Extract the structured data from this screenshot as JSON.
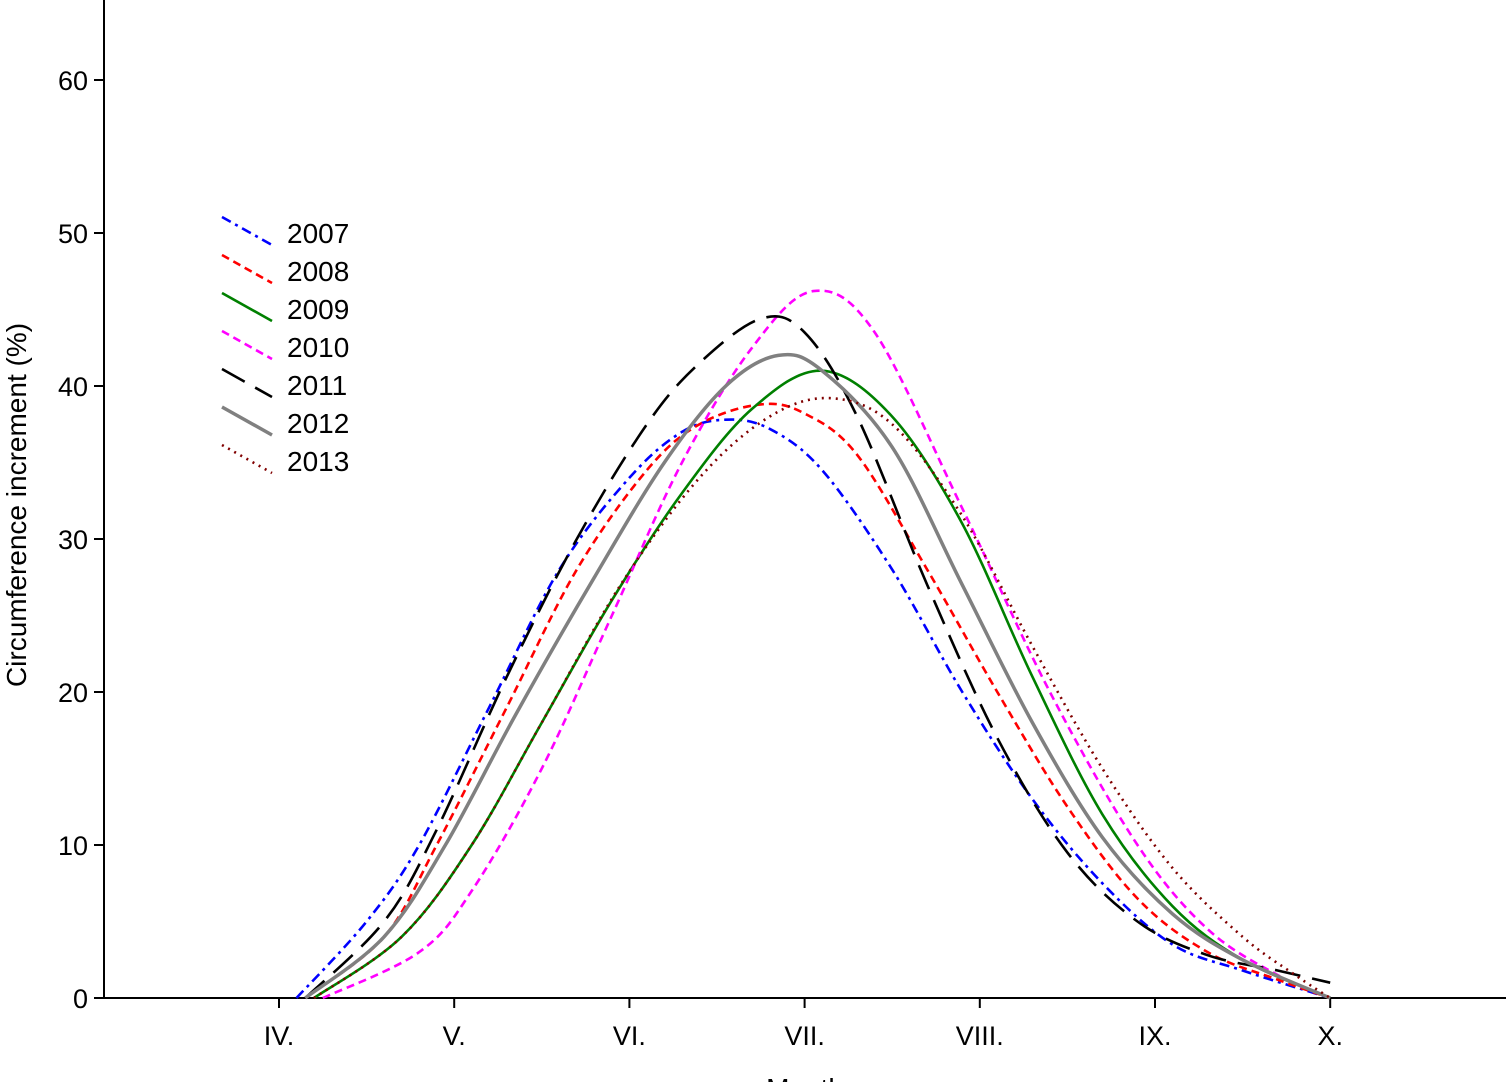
{
  "chart_data": {
    "type": "line",
    "title": "",
    "xlabel": "Month",
    "ylabel": "Circumference increment (%)",
    "x_ticks": [
      "IV.",
      "V.",
      "VI.",
      "VII.",
      "VIII.",
      "IX.",
      "X."
    ],
    "xlim": [
      3.0,
      11.0
    ],
    "ylim": [
      0,
      65
    ],
    "y_ticks": [
      0,
      10,
      20,
      30,
      40,
      50,
      60
    ],
    "grid": false,
    "legend_position": "upper-left",
    "series": [
      {
        "name": "2007",
        "color": "#0000ff",
        "dash": "dash-dot",
        "points": [
          [
            4.1,
            0
          ],
          [
            4.5,
            5
          ],
          [
            4.8,
            10
          ],
          [
            5.2,
            19
          ],
          [
            5.6,
            28
          ],
          [
            6.0,
            34
          ],
          [
            6.3,
            37
          ],
          [
            6.55,
            37.8
          ],
          [
            6.8,
            37.2
          ],
          [
            7.1,
            34.5
          ],
          [
            7.5,
            28
          ],
          [
            7.9,
            20
          ],
          [
            8.3,
            13
          ],
          [
            8.7,
            7.5
          ],
          [
            9.1,
            3.5
          ],
          [
            9.5,
            1.8
          ],
          [
            10.0,
            0
          ]
        ]
      },
      {
        "name": "2008",
        "color": "#ff0000",
        "dash": "short-dash",
        "points": [
          [
            4.15,
            0
          ],
          [
            4.6,
            4
          ],
          [
            4.9,
            10
          ],
          [
            5.3,
            19
          ],
          [
            5.7,
            28
          ],
          [
            6.1,
            34.5
          ],
          [
            6.4,
            37.5
          ],
          [
            6.75,
            38.8
          ],
          [
            7.0,
            38.2
          ],
          [
            7.3,
            35.5
          ],
          [
            7.7,
            28
          ],
          [
            8.1,
            20
          ],
          [
            8.5,
            12.5
          ],
          [
            8.9,
            6.5
          ],
          [
            9.3,
            3
          ],
          [
            9.7,
            1.2
          ],
          [
            10.0,
            0
          ]
        ]
      },
      {
        "name": "2009",
        "color": "#008000",
        "dash": "solid",
        "points": [
          [
            4.2,
            0
          ],
          [
            4.7,
            4
          ],
          [
            5.1,
            10
          ],
          [
            5.5,
            18
          ],
          [
            5.9,
            26
          ],
          [
            6.3,
            33
          ],
          [
            6.7,
            38.5
          ],
          [
            7.1,
            41
          ],
          [
            7.5,
            38
          ],
          [
            7.9,
            31
          ],
          [
            8.3,
            21
          ],
          [
            8.7,
            12
          ],
          [
            9.1,
            6
          ],
          [
            9.5,
            2.5
          ],
          [
            10.0,
            0
          ]
        ]
      },
      {
        "name": "2010",
        "color": "#ff00ff",
        "dash": "short-dash",
        "points": [
          [
            4.25,
            0
          ],
          [
            4.8,
            3
          ],
          [
            5.1,
            7
          ],
          [
            5.5,
            15
          ],
          [
            5.9,
            25
          ],
          [
            6.3,
            35
          ],
          [
            6.7,
            42.5
          ],
          [
            7.05,
            46.2
          ],
          [
            7.4,
            43.5
          ],
          [
            7.9,
            32
          ],
          [
            8.4,
            20
          ],
          [
            8.9,
            10
          ],
          [
            9.3,
            4.5
          ],
          [
            9.7,
            1.5
          ],
          [
            10.0,
            0
          ]
        ]
      },
      {
        "name": "2011",
        "color": "#000000",
        "dash": "long-dash",
        "points": [
          [
            4.15,
            0
          ],
          [
            4.6,
            5
          ],
          [
            4.9,
            11
          ],
          [
            5.3,
            21
          ],
          [
            5.7,
            30
          ],
          [
            6.1,
            37.5
          ],
          [
            6.4,
            41.5
          ],
          [
            6.75,
            44.4
          ],
          [
            7.0,
            43.5
          ],
          [
            7.3,
            38
          ],
          [
            7.7,
            27
          ],
          [
            8.1,
            17
          ],
          [
            8.5,
            9.5
          ],
          [
            8.9,
            5
          ],
          [
            9.3,
            2.8
          ],
          [
            9.7,
            1.8
          ],
          [
            10.0,
            1
          ]
        ]
      },
      {
        "name": "2012",
        "color": "#808080",
        "dash": "solid",
        "points": [
          [
            4.15,
            0
          ],
          [
            4.6,
            4
          ],
          [
            4.95,
            10
          ],
          [
            5.35,
            18.5
          ],
          [
            5.8,
            27.5
          ],
          [
            6.2,
            35
          ],
          [
            6.55,
            40
          ],
          [
            6.85,
            42
          ],
          [
            7.1,
            41
          ],
          [
            7.5,
            36
          ],
          [
            7.9,
            27
          ],
          [
            8.3,
            18
          ],
          [
            8.7,
            10.5
          ],
          [
            9.1,
            5.5
          ],
          [
            9.5,
            2.5
          ],
          [
            10.0,
            0
          ]
        ]
      },
      {
        "name": "2013",
        "color": "#800000",
        "dash": "dotted",
        "points": [
          [
            4.2,
            0
          ],
          [
            4.7,
            4
          ],
          [
            5.1,
            10
          ],
          [
            5.5,
            18
          ],
          [
            5.95,
            27
          ],
          [
            6.4,
            34
          ],
          [
            6.8,
            38
          ],
          [
            7.15,
            39.2
          ],
          [
            7.5,
            37.5
          ],
          [
            7.9,
            31.5
          ],
          [
            8.3,
            23
          ],
          [
            8.7,
            15
          ],
          [
            9.1,
            8.5
          ],
          [
            9.5,
            4
          ],
          [
            9.8,
            1.5
          ],
          [
            10.0,
            0
          ]
        ]
      }
    ]
  }
}
